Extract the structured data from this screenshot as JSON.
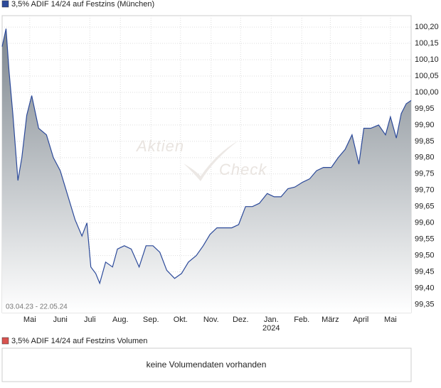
{
  "chart_data": {
    "type": "line",
    "title": "3,5% ADIF  14/24 auf Festzins (München)",
    "date_range": "03.04.23 - 22.05.24",
    "watermark": [
      "Aktien",
      "Check"
    ],
    "x": [
      "2023-04-03",
      "2023-04-07",
      "2023-04-10",
      "2023-04-14",
      "2023-04-19",
      "2023-04-23",
      "2023-04-28",
      "2023-05-03",
      "2023-05-10",
      "2023-05-18",
      "2023-05-25",
      "2023-06-01",
      "2023-06-08",
      "2023-06-16",
      "2023-06-23",
      "2023-06-28",
      "2023-07-02",
      "2023-07-07",
      "2023-07-11",
      "2023-07-17",
      "2023-07-24",
      "2023-07-29",
      "2023-08-05",
      "2023-08-12",
      "2023-08-20",
      "2023-08-27",
      "2023-09-03",
      "2023-09-10",
      "2023-09-17",
      "2023-09-25",
      "2023-10-02",
      "2023-10-09",
      "2023-10-17",
      "2023-10-24",
      "2023-10-31",
      "2023-11-07",
      "2023-11-14",
      "2023-11-22",
      "2023-11-29",
      "2023-12-06",
      "2023-12-13",
      "2023-12-20",
      "2023-12-28",
      "2024-01-04",
      "2024-01-11",
      "2024-01-18",
      "2024-01-25",
      "2024-02-02",
      "2024-02-09",
      "2024-02-16",
      "2024-02-23",
      "2024-03-02",
      "2024-03-09",
      "2024-03-16",
      "2024-03-23",
      "2024-03-30",
      "2024-04-04",
      "2024-04-11",
      "2024-04-19",
      "2024-04-26",
      "2024-05-01",
      "2024-05-07",
      "2024-05-12",
      "2024-05-17",
      "2024-05-22"
    ],
    "series": [
      {
        "name": "3,5% ADIF  14/24 auf Festzins (München)",
        "color": "#2c4a9a",
        "values": [
          100.14,
          100.195,
          100.065,
          99.93,
          99.73,
          99.8,
          99.93,
          99.99,
          99.89,
          99.87,
          99.8,
          99.76,
          99.69,
          99.61,
          99.56,
          99.6,
          99.465,
          99.445,
          99.415,
          99.48,
          99.465,
          99.52,
          99.53,
          99.52,
          99.465,
          99.53,
          99.53,
          99.51,
          99.455,
          99.43,
          99.445,
          99.48,
          99.5,
          99.53,
          99.565,
          99.585,
          99.585,
          99.585,
          99.595,
          99.65,
          99.65,
          99.66,
          99.69,
          99.68,
          99.68,
          99.705,
          99.71,
          99.725,
          99.735,
          99.76,
          99.77,
          99.77,
          99.8,
          99.825,
          99.87,
          99.78,
          99.89,
          99.89,
          99.9,
          99.87,
          99.925,
          99.86,
          99.935,
          99.965,
          99.975
        ]
      }
    ],
    "xlim": [
      "2023-04-03",
      "2024-05-22"
    ],
    "xticks": [
      {
        "value": "2023-05-01",
        "label": "Mai"
      },
      {
        "value": "2023-06-01",
        "label": "Juni"
      },
      {
        "value": "2023-07-01",
        "label": "Juli"
      },
      {
        "value": "2023-08-01",
        "label": "Aug."
      },
      {
        "value": "2023-09-01",
        "label": "Sep."
      },
      {
        "value": "2023-10-01",
        "label": "Okt."
      },
      {
        "value": "2023-11-01",
        "label": "Nov."
      },
      {
        "value": "2023-12-01",
        "label": "Dez."
      },
      {
        "value": "2024-01-01",
        "label": "Jan."
      },
      {
        "value": "2024-02-01",
        "label": "Feb."
      },
      {
        "value": "2024-03-01",
        "label": "März"
      },
      {
        "value": "2024-04-01",
        "label": "April"
      },
      {
        "value": "2024-05-01",
        "label": "Mai"
      }
    ],
    "x_year_label": "2024",
    "ylim": [
      99.325,
      100.235
    ],
    "yticks": [
      {
        "value": 99.35,
        "label": "99,35"
      },
      {
        "value": 99.4,
        "label": "99,40"
      },
      {
        "value": 99.45,
        "label": "99,45"
      },
      {
        "value": 99.5,
        "label": "99,50"
      },
      {
        "value": 99.55,
        "label": "99,55"
      },
      {
        "value": 99.6,
        "label": "99,60"
      },
      {
        "value": 99.65,
        "label": "99,65"
      },
      {
        "value": 99.7,
        "label": "99,70"
      },
      {
        "value": 99.75,
        "label": "99,75"
      },
      {
        "value": 99.8,
        "label": "99,80"
      },
      {
        "value": 99.85,
        "label": "99,85"
      },
      {
        "value": 99.9,
        "label": "99,90"
      },
      {
        "value": 99.95,
        "label": "99,95"
      },
      {
        "value": 100.0,
        "label": "100,00"
      },
      {
        "value": 100.05,
        "label": "100,05"
      },
      {
        "value": 100.1,
        "label": "100,10"
      },
      {
        "value": 100.15,
        "label": "100,15"
      },
      {
        "value": 100.2,
        "label": "100,20"
      }
    ],
    "grid": true,
    "volume": {
      "title": "3,5% ADIF  14/24 auf Festzins Volumen",
      "color": "#d9534f",
      "message": "keine Volumendaten vorhanden"
    }
  }
}
